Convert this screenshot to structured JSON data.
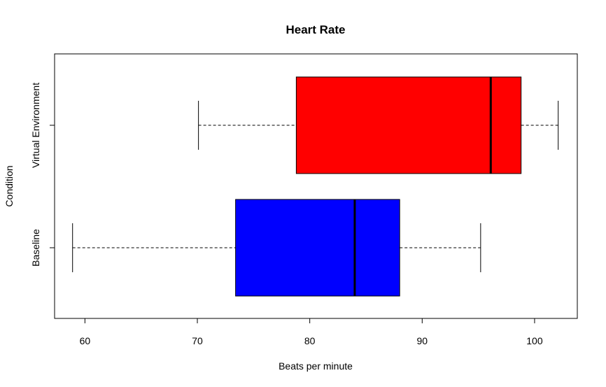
{
  "chart_data": {
    "type": "boxplot",
    "orientation": "horizontal",
    "title": "Heart Rate",
    "xlabel": "Beats per minute",
    "ylabel": "Condition",
    "xlim": [
      57.3,
      103.8
    ],
    "xticks": [
      60,
      70,
      80,
      90,
      100
    ],
    "grid": false,
    "categories": [
      "Baseline",
      "Virtual Environment"
    ],
    "boxes": [
      {
        "category": "Baseline",
        "min": 58.9,
        "q1": 73.4,
        "median": 84.0,
        "q3": 88.0,
        "max": 95.2,
        "color": "#0000ff"
      },
      {
        "category": "Virtual Environment",
        "min": 70.1,
        "q1": 78.8,
        "median": 96.1,
        "q3": 98.8,
        "max": 102.1,
        "color": "#ff0000"
      }
    ]
  }
}
